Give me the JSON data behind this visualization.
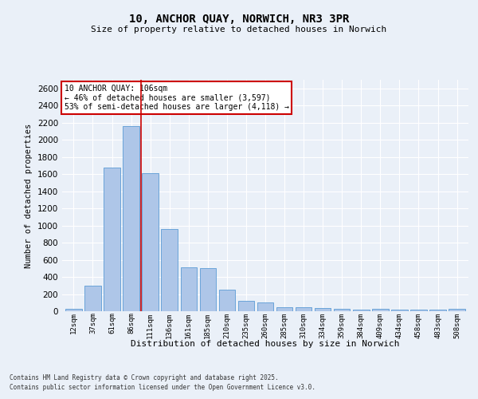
{
  "title": "10, ANCHOR QUAY, NORWICH, NR3 3PR",
  "subtitle": "Size of property relative to detached houses in Norwich",
  "xlabel": "Distribution of detached houses by size in Norwich",
  "ylabel": "Number of detached properties",
  "categories": [
    "12sqm",
    "37sqm",
    "61sqm",
    "86sqm",
    "111sqm",
    "136sqm",
    "161sqm",
    "185sqm",
    "210sqm",
    "235sqm",
    "260sqm",
    "285sqm",
    "310sqm",
    "334sqm",
    "359sqm",
    "384sqm",
    "409sqm",
    "434sqm",
    "458sqm",
    "483sqm",
    "508sqm"
  ],
  "values": [
    25,
    300,
    1680,
    2160,
    1610,
    960,
    510,
    505,
    250,
    125,
    100,
    50,
    50,
    35,
    30,
    20,
    30,
    20,
    20,
    15,
    25
  ],
  "bar_color": "#aec6e8",
  "bar_edge_color": "#5b9bd5",
  "red_line_x": 3.5,
  "annotation_text": "10 ANCHOR QUAY: 106sqm\n← 46% of detached houses are smaller (3,597)\n53% of semi-detached houses are larger (4,118) →",
  "annotation_box_color": "#ffffff",
  "annotation_box_edge": "#cc0000",
  "property_line_color": "#cc0000",
  "ylim": [
    0,
    2700
  ],
  "yticks": [
    0,
    200,
    400,
    600,
    800,
    1000,
    1200,
    1400,
    1600,
    1800,
    2000,
    2200,
    2400,
    2600
  ],
  "background_color": "#eaf0f8",
  "grid_color": "#ffffff",
  "footer_line1": "Contains HM Land Registry data © Crown copyright and database right 2025.",
  "footer_line2": "Contains public sector information licensed under the Open Government Licence v3.0."
}
